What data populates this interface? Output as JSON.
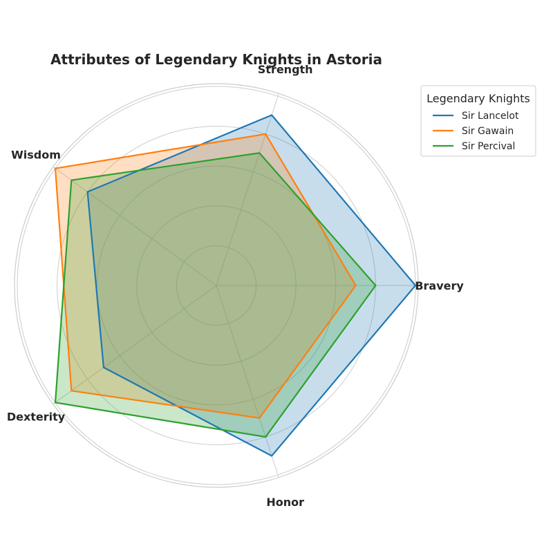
{
  "chart_data": {
    "type": "radar",
    "title": "Attributes of Legendary Knights in Astoria",
    "axes": [
      "Bravery",
      "Strength",
      "Wisdom",
      "Dexterity",
      "Honor"
    ],
    "rlim": [
      0,
      10
    ],
    "gridlines": [
      2,
      4,
      6,
      8,
      10
    ],
    "grid": true,
    "legend_title": "Legendary Knights",
    "legend_position": "top-right",
    "series": [
      {
        "name": "Sir Lancelot",
        "values": [
          10,
          9,
          8,
          7,
          9
        ],
        "color": "#1f77b4"
      },
      {
        "name": "Sir Gawain",
        "values": [
          7,
          8,
          10,
          9,
          7
        ],
        "color": "#ff7f0e"
      },
      {
        "name": "Sir Percival",
        "values": [
          8,
          7,
          9,
          10,
          8
        ],
        "color": "#2ca02c"
      }
    ]
  }
}
